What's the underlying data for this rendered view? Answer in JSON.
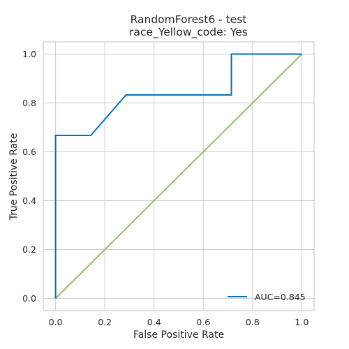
{
  "chart_data": {
    "type": "line",
    "title": "RandomForest6 - test",
    "subtitle": "race_Yellow_code: Yes",
    "xlabel": "False Positive Rate",
    "ylabel": "True Positive Rate",
    "xlim": [
      -0.05,
      1.05
    ],
    "ylim": [
      -0.05,
      1.05
    ],
    "xticks": [
      "0.0",
      "0.2",
      "0.4",
      "0.6",
      "0.8",
      "1.0"
    ],
    "yticks": [
      "0.0",
      "0.2",
      "0.4",
      "0.6",
      "0.8",
      "1.0"
    ],
    "grid": true,
    "legend_position": "lower-right",
    "series": [
      {
        "name": "AUC=0.845",
        "color": "#0072b2",
        "x": [
          0.0,
          0.0,
          0.143,
          0.286,
          0.714,
          0.714,
          1.0
        ],
        "y": [
          0.0,
          0.667,
          0.667,
          0.833,
          0.833,
          1.0,
          1.0
        ]
      },
      {
        "color": "#8ec06c",
        "x": [
          0.0,
          1.0
        ],
        "y": [
          0.0,
          1.0
        ]
      }
    ]
  }
}
